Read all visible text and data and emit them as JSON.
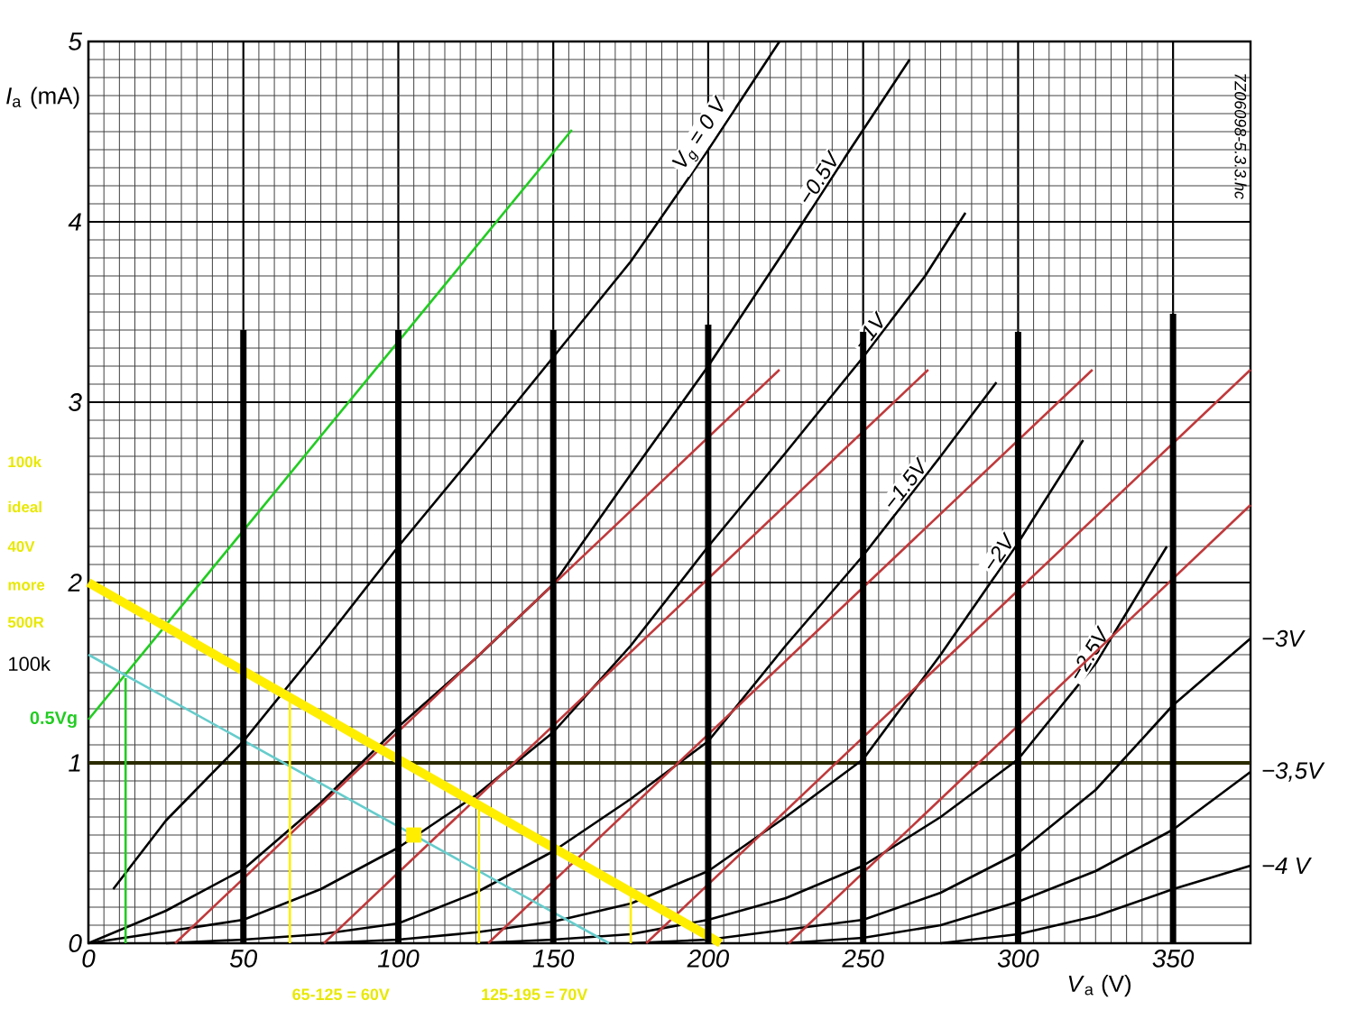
{
  "chart_data": {
    "type": "line",
    "xlabel": "*V*$_{a}$ (V)",
    "ylabel": "*I*$_{a}$ (mA)",
    "xlim": [
      0,
      375
    ],
    "ylim": [
      0,
      5
    ],
    "xticks": [
      0,
      50,
      100,
      150,
      200,
      250,
      300,
      350
    ],
    "yticks": [
      0,
      1,
      2,
      3,
      4,
      5
    ],
    "grid": true,
    "marker": "none",
    "ref_lines": [
      {
        "axis": "y",
        "value": 1,
        "color": "#2b2b00"
      }
    ],
    "annotations": [
      "100k",
      "ideal",
      "40V",
      "more",
      "500R",
      "100k",
      {
        "text": "65-125 = 60V",
        "x": 65,
        "y": 0
      },
      {
        "text": "125-195 = 70V",
        "x": 126,
        "y": 0
      },
      "7Z06098-5.3.3.hc"
    ],
    "series": [
      {
        "name": "*V*$_{g}$ = 0 V",
        "color": "#000000",
        "x": [
          8,
          25,
          50,
          75,
          100,
          125,
          150,
          175,
          200,
          223
        ],
        "values": [
          0.3,
          0.68,
          1.12,
          1.65,
          2.2,
          2.72,
          3.25,
          3.78,
          4.4,
          5
        ]
      },
      {
        "name": "−0.5V",
        "color": "#000000",
        "x": [
          0,
          25,
          50,
          75,
          100,
          125,
          150,
          175,
          200,
          225,
          245,
          265
        ],
        "values": [
          0,
          0.18,
          0.41,
          0.78,
          1.2,
          1.58,
          1.99,
          2.6,
          3.2,
          3.85,
          4.38,
          4.9
        ]
      },
      {
        "name": "−1V",
        "color": "#000000",
        "x": [
          0,
          50,
          75,
          100,
          125,
          150,
          175,
          200,
          225,
          250,
          270,
          283
        ],
        "values": [
          0,
          0.13,
          0.3,
          0.53,
          0.82,
          1.17,
          1.65,
          2.2,
          2.72,
          3.25,
          3.7,
          4.05
        ]
      },
      {
        "name": "−1.5V",
        "color": "#000000",
        "x": [
          25,
          50,
          75,
          100,
          125,
          150,
          175,
          200,
          225,
          250,
          275,
          293
        ],
        "values": [
          0,
          0.02,
          0.05,
          0.11,
          0.28,
          0.51,
          0.8,
          1.12,
          1.65,
          2.15,
          2.7,
          3.11
        ]
      },
      {
        "name": "−2V",
        "color": "#000000",
        "x": [
          75,
          100,
          125,
          150,
          175,
          200,
          225,
          250,
          275,
          300,
          321
        ],
        "values": [
          0,
          0.02,
          0.06,
          0.12,
          0.22,
          0.4,
          0.7,
          1.02,
          1.6,
          2.22,
          2.79
        ]
      },
      {
        "name": "−2.5V",
        "color": "#000000",
        "x": [
          125,
          150,
          175,
          200,
          225,
          250,
          275,
          300,
          325,
          348
        ],
        "values": [
          0,
          0.02,
          0.05,
          0.13,
          0.25,
          0.43,
          0.7,
          1.02,
          1.55,
          2.2
        ]
      },
      {
        "name": "−3V",
        "color": "#000000",
        "x": [
          175,
          200,
          250,
          275,
          300,
          325,
          350,
          375
        ],
        "values": [
          0,
          0.02,
          0.13,
          0.28,
          0.5,
          0.85,
          1.32,
          1.69
        ]
      },
      {
        "name": "−3,5V",
        "color": "#000000",
        "x": [
          225,
          250,
          275,
          300,
          325,
          350,
          375
        ],
        "values": [
          0,
          0.03,
          0.1,
          0.23,
          0.4,
          0.63,
          0.95
        ]
      },
      {
        "name": "−4 V",
        "color": "#000000",
        "x": [
          275,
          300,
          325,
          350,
          375
        ],
        "values": [
          0,
          0.05,
          0.15,
          0.3,
          0.43
        ]
      },
      {
        "color": "#c0393b",
        "x": [
          28,
          223
        ],
        "values": [
          0,
          3.18
        ]
      },
      {
        "color": "#c0393b",
        "x": [
          76,
          271
        ],
        "values": [
          0,
          3.18
        ]
      },
      {
        "color": "#c0393b",
        "x": [
          129,
          324
        ],
        "values": [
          0,
          3.18
        ]
      },
      {
        "color": "#c0393b",
        "x": [
          180,
          375
        ],
        "values": [
          0,
          3.18
        ]
      },
      {
        "color": "#c0393b",
        "x": [
          226,
          375
        ],
        "values": [
          0,
          2.43
        ]
      },
      {
        "name": "0.5Vg",
        "color": "#22cc22",
        "x": [
          0,
          156
        ],
        "values": [
          1.24,
          4.51
        ]
      },
      {
        "color": "#22cc22",
        "x": [
          12,
          12
        ],
        "values": [
          0,
          1.47
        ]
      },
      {
        "color": "#66cccc",
        "x": [
          0,
          168
        ],
        "values": [
          1.6,
          0
        ]
      },
      {
        "color": "#ffee00",
        "x": [
          0,
          204
        ],
        "values": [
          2.0,
          0
        ]
      },
      {
        "color": "#ffee00",
        "x": [
          65,
          65
        ],
        "values": [
          0,
          1.36
        ]
      },
      {
        "color": "#ffee00",
        "x": [
          126,
          126
        ],
        "values": [
          0,
          0.77
        ]
      },
      {
        "color": "#ffee00",
        "x": [
          175,
          175
        ],
        "values": [
          0,
          0.3
        ]
      },
      {
        "type": "scatter",
        "marker": "square",
        "color": "#ffee00",
        "x": [
          105
        ],
        "values": [
          0.6
        ]
      },
      {
        "type": "bar",
        "color": "#000000",
        "x": [
          50,
          100,
          150,
          200,
          250,
          300,
          350
        ],
        "values": [
          3.4,
          3.4,
          3.4,
          3.43,
          3.39,
          3.39,
          3.49
        ]
      }
    ]
  }
}
